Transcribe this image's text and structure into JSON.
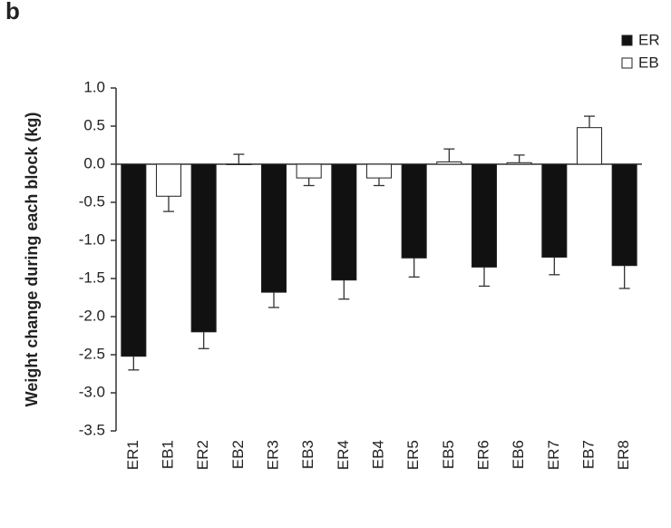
{
  "chart_data": {
    "type": "bar",
    "panel_label": "b",
    "y_label": "Weight change during each block (kg)",
    "categories": [
      "ER1",
      "EB1",
      "ER2",
      "EB2",
      "ER3",
      "EB3",
      "ER4",
      "EB4",
      "ER5",
      "EB5",
      "ER6",
      "EB6",
      "ER7",
      "EB7",
      "ER8"
    ],
    "series": [
      {
        "name": "ER",
        "color": "#111111",
        "values": [
          -2.52,
          null,
          -2.2,
          null,
          -1.68,
          null,
          -1.52,
          null,
          -1.23,
          null,
          -1.35,
          null,
          -1.22,
          null,
          -1.33
        ],
        "errors": [
          0.18,
          null,
          0.22,
          null,
          0.2,
          null,
          0.25,
          null,
          0.25,
          null,
          0.25,
          null,
          0.23,
          null,
          0.3
        ]
      },
      {
        "name": "EB",
        "color": "#ffffff",
        "values": [
          null,
          -0.42,
          null,
          0.0,
          null,
          -0.18,
          null,
          -0.18,
          null,
          0.03,
          null,
          0.02,
          null,
          0.48,
          null
        ],
        "errors": [
          null,
          0.2,
          null,
          0.13,
          null,
          0.1,
          null,
          0.1,
          null,
          0.17,
          null,
          0.1,
          null,
          0.15,
          null
        ]
      }
    ],
    "ylim": [
      -3.5,
      1.0
    ],
    "yticks": [
      {
        "value": 1.0,
        "label": "1.0"
      },
      0.5,
      {
        "value": 0.0,
        "label": "0.0"
      },
      -0.5,
      {
        "value": -1.0,
        "label": "-1.0"
      },
      -1.5,
      {
        "value": -2.0,
        "label": "-2.0"
      },
      -2.5,
      {
        "value": -3.0,
        "label": "-3.0"
      },
      -3.5
    ],
    "grid": false,
    "legend": "top-right"
  }
}
